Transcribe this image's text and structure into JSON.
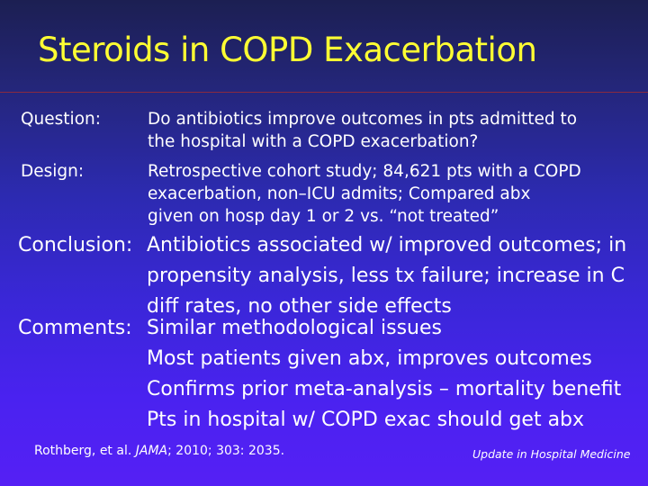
{
  "title": "Steroids in COPD Exacerbation",
  "question": {
    "label": "Question:",
    "lines": [
      "Do antibiotics improve outcomes in pts admitted to",
      "the hospital with a COPD exacerbation?"
    ]
  },
  "design": {
    "label": "Design:",
    "lines": [
      "Retrospective cohort study; 84,621 pts with a COPD",
      "exacerbation, non–ICU admits;  Compared abx",
      "given on hosp day 1 or 2 vs. “not treated”"
    ]
  },
  "conclusion": {
    "label": "Conclusion:",
    "lines": [
      "Antibiotics associated w/ improved outcomes; in",
      "propensity analysis, less tx failure; increase in C",
      "diff rates, no other side effects"
    ]
  },
  "comments": {
    "label": "Comments:",
    "lines": [
      "Similar methodological issues",
      "Most patients given abx, improves outcomes",
      "Confirms prior meta-analysis – mortality benefit",
      "Pts  in hospital w/ COPD exac should get abx"
    ]
  },
  "citation": {
    "authors": "Rothberg, et al. ",
    "journal": "JAMA",
    "rest": "; 2010; 303: 2035."
  },
  "footer": "Update in Hospital Medicine"
}
